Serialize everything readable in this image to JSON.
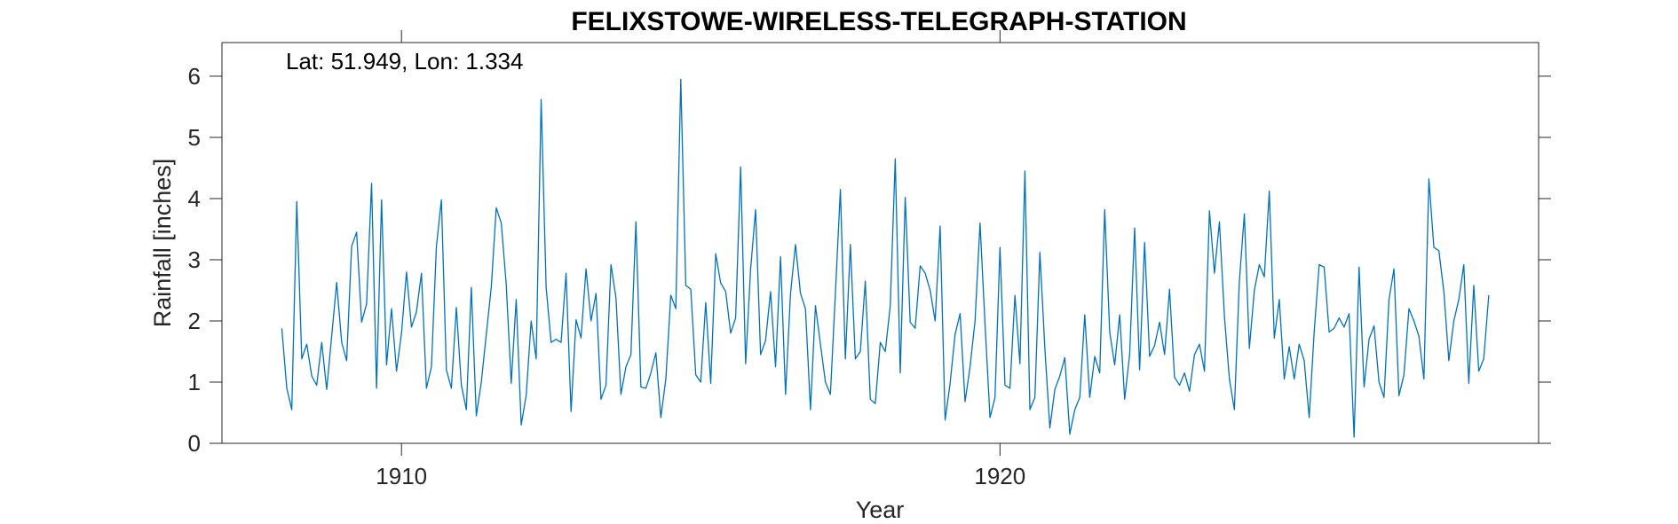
{
  "chart_data": {
    "type": "line",
    "title": "FELIXSTOWE-WIRELESS-TELEGRAPH-STATION",
    "annotation": "Lat: 51.949, Lon: 1.334",
    "xlabel": "Year",
    "ylabel": "Rainfall [inches]",
    "xlim": [
      1907.0,
      1929.0
    ],
    "ylim": [
      0,
      6.55
    ],
    "xticks": [
      1910,
      1920
    ],
    "yticks": [
      0,
      1,
      2,
      3,
      4,
      5,
      6
    ],
    "grid": false,
    "line_color": "#0072BD",
    "x_start": 1908.0,
    "x_step_months": 1,
    "values": [
      1.88,
      0.9,
      0.55,
      3.95,
      1.38,
      1.62,
      1.1,
      0.95,
      1.65,
      0.88,
      1.75,
      2.63,
      1.65,
      1.35,
      3.22,
      3.45,
      1.98,
      2.28,
      4.25,
      0.9,
      3.98,
      1.28,
      2.2,
      1.18,
      1.8,
      2.8,
      1.9,
      2.15,
      2.78,
      0.9,
      1.25,
      3.22,
      3.98,
      1.2,
      0.9,
      2.22,
      0.95,
      0.55,
      2.55,
      0.45,
      1.0,
      1.78,
      2.55,
      3.85,
      3.6,
      2.6,
      0.98,
      2.35,
      0.3,
      0.78,
      2.0,
      1.38,
      5.62,
      2.55,
      1.65,
      1.7,
      1.65,
      2.78,
      0.52,
      2.02,
      1.72,
      2.85,
      2.0,
      2.45,
      0.72,
      0.95,
      2.92,
      2.38,
      0.8,
      1.25,
      1.45,
      3.62,
      0.92,
      0.9,
      1.15,
      1.48,
      0.42,
      1.05,
      2.42,
      2.2,
      5.95,
      2.58,
      2.52,
      1.12,
      1.0,
      2.3,
      0.98,
      3.1,
      2.62,
      2.48,
      1.8,
      2.05,
      4.52,
      1.3,
      2.85,
      3.82,
      1.45,
      1.68,
      2.48,
      1.25,
      3.05,
      0.8,
      2.45,
      3.25,
      2.45,
      2.2,
      0.55,
      2.25,
      1.62,
      1.0,
      0.8,
      2.45,
      4.15,
      1.38,
      3.25,
      1.38,
      1.5,
      2.65,
      0.72,
      0.65,
      1.65,
      1.5,
      2.25,
      4.65,
      1.15,
      4.02,
      1.98,
      1.88,
      2.9,
      2.78,
      2.5,
      2.0,
      3.55,
      0.38,
      0.98,
      1.78,
      2.12,
      0.68,
      1.25,
      2.0,
      3.6,
      1.95,
      0.42,
      0.75,
      3.2,
      0.95,
      0.9,
      2.42,
      1.3,
      4.45,
      0.55,
      0.75,
      3.12,
      1.55,
      0.25,
      0.88,
      1.1,
      1.4,
      0.15,
      0.55,
      0.75,
      2.1,
      0.75,
      1.42,
      1.15,
      3.82,
      1.82,
      1.28,
      2.1,
      0.72,
      1.45,
      3.52,
      1.2,
      3.28,
      1.42,
      1.6,
      1.98,
      1.45,
      2.52,
      1.08,
      0.95,
      1.15,
      0.85,
      1.45,
      1.62,
      1.18,
      3.8,
      2.78,
      3.62,
      2.08,
      1.05,
      0.55,
      2.65,
      3.75,
      1.55,
      2.5,
      2.92,
      2.72,
      4.12,
      1.72,
      2.35,
      1.05,
      1.58,
      1.05,
      1.62,
      1.35,
      0.42,
      1.82,
      2.92,
      2.88,
      1.82,
      1.88,
      2.05,
      1.9,
      2.12,
      0.1,
      2.88,
      0.92,
      1.7,
      1.92,
      1.0,
      0.75,
      2.35,
      2.85,
      0.78,
      1.12,
      2.2,
      2.0,
      1.75,
      1.05,
      4.32,
      3.2,
      3.15,
      2.48,
      1.35,
      2.0,
      2.35,
      2.92,
      0.98,
      2.58,
      1.18,
      1.38,
      2.42
    ]
  }
}
